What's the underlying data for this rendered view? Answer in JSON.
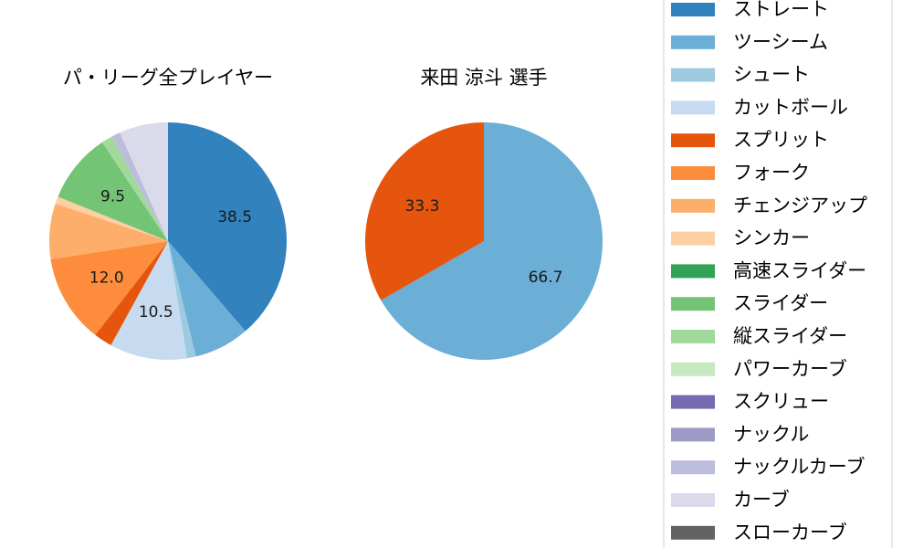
{
  "chart_data": [
    {
      "type": "pie",
      "title": "パ・リーグ全プレイヤー",
      "labels": [
        "ストレート",
        "ツーシーム",
        "シュート",
        "カットボール",
        "スプリット",
        "フォーク",
        "チェンジアップ",
        "シンカー",
        "高速スライダー",
        "スライダー",
        "縦スライダー",
        "パワーカーブ",
        "スクリュー",
        "ナックル",
        "ナックルカーブ",
        "カーブ",
        "スローカーブ"
      ],
      "values": [
        38.5,
        7.5,
        1.2,
        10.5,
        2.5,
        12.0,
        7.5,
        1.0,
        0.0,
        9.5,
        1.5,
        0.0,
        0.0,
        0.0,
        1.2,
        6.6,
        0.0
      ],
      "data_labels": [
        "38.5",
        "",
        "",
        "10.5",
        "",
        "12.0",
        "",
        "",
        "",
        "9.5",
        "",
        "",
        "",
        "",
        "",
        "",
        ""
      ]
    },
    {
      "type": "pie",
      "title": "来田 涼斗  選手",
      "labels": [
        "ツーシーム",
        "スプリット"
      ],
      "values": [
        66.7,
        33.3
      ],
      "colors": [
        "#6baed6",
        "#e6550d"
      ],
      "data_labels": [
        "66.7",
        "33.3"
      ]
    }
  ],
  "legend": {
    "placement": "right",
    "items": [
      {
        "label": "ストレート",
        "color": "#3182bd"
      },
      {
        "label": "ツーシーム",
        "color": "#6baed6"
      },
      {
        "label": "シュート",
        "color": "#9ecae1"
      },
      {
        "label": "カットボール",
        "color": "#c6dbef"
      },
      {
        "label": "スプリット",
        "color": "#e6550d"
      },
      {
        "label": "フォーク",
        "color": "#fd8d3c"
      },
      {
        "label": "チェンジアップ",
        "color": "#fdae6b"
      },
      {
        "label": "シンカー",
        "color": "#fdd0a2"
      },
      {
        "label": "高速スライダー",
        "color": "#31a354"
      },
      {
        "label": "スライダー",
        "color": "#74c476"
      },
      {
        "label": "縦スライダー",
        "color": "#a1d99b"
      },
      {
        "label": "パワーカーブ",
        "color": "#c7e9c0"
      },
      {
        "label": "スクリュー",
        "color": "#756bb1"
      },
      {
        "label": "ナックル",
        "color": "#9e9ac8"
      },
      {
        "label": "ナックルカーブ",
        "color": "#bcbddc"
      },
      {
        "label": "カーブ",
        "color": "#dadaeb"
      },
      {
        "label": "スローカーブ",
        "color": "#636363"
      }
    ]
  }
}
